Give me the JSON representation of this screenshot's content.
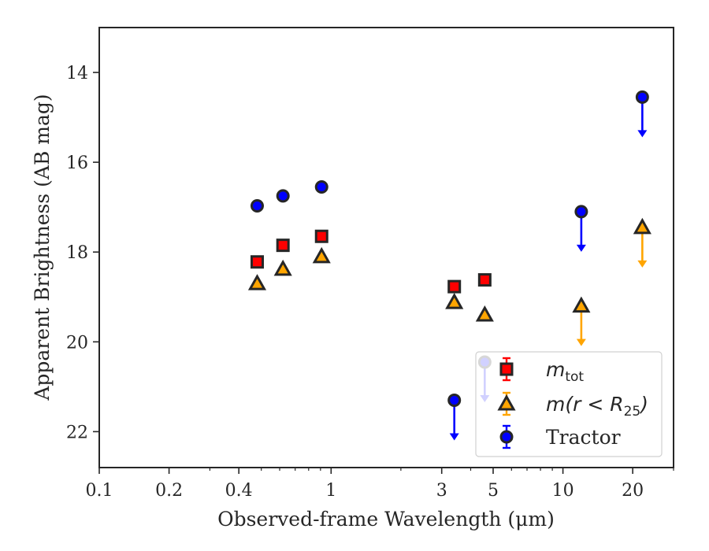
{
  "chart_data": {
    "type": "scatter",
    "title": "",
    "xlabel": "Observed-frame Wavelength (μm)",
    "ylabel": "Apparent Brightness (AB mag)",
    "xscale": "log",
    "yaxis_inverted": true,
    "xlim": [
      0.1,
      30
    ],
    "ylim": [
      22.8,
      13.0
    ],
    "x_ticks": [
      {
        "value": 0.1,
        "label": "0.1"
      },
      {
        "value": 0.2,
        "label": "0.2"
      },
      {
        "value": 0.4,
        "label": "0.4"
      },
      {
        "value": 1,
        "label": "1"
      },
      {
        "value": 3,
        "label": "3"
      },
      {
        "value": 5,
        "label": "5"
      },
      {
        "value": 10,
        "label": "10"
      },
      {
        "value": 20,
        "label": "20"
      }
    ],
    "y_ticks": [
      {
        "value": 14,
        "label": "14"
      },
      {
        "value": 16,
        "label": "16"
      },
      {
        "value": 18,
        "label": "18"
      },
      {
        "value": 20,
        "label": "20"
      },
      {
        "value": 22,
        "label": "22"
      }
    ],
    "grid": false,
    "legend_position": "lower-right",
    "series": [
      {
        "name": "m_tot",
        "legend_label": {
          "main": "m",
          "sub": "tot",
          "rest": ""
        },
        "marker": "square",
        "color": "#ff0000",
        "edge_color": "#262626",
        "points": [
          {
            "x": 0.48,
            "y": 18.22,
            "upper_limit": false
          },
          {
            "x": 0.62,
            "y": 17.85,
            "upper_limit": false
          },
          {
            "x": 0.91,
            "y": 17.65,
            "upper_limit": false
          },
          {
            "x": 3.4,
            "y": 18.77,
            "upper_limit": false
          },
          {
            "x": 4.6,
            "y": 18.62,
            "upper_limit": false
          }
        ]
      },
      {
        "name": "m(r < R_25)",
        "legend_label": {
          "main": "m(r < R",
          "sub": "25",
          "rest": ")"
        },
        "marker": "triangle",
        "color": "#ffa500",
        "edge_color": "#262626",
        "points": [
          {
            "x": 0.48,
            "y": 18.7,
            "upper_limit": false
          },
          {
            "x": 0.62,
            "y": 18.38,
            "upper_limit": false
          },
          {
            "x": 0.91,
            "y": 18.1,
            "upper_limit": false
          },
          {
            "x": 3.4,
            "y": 19.12,
            "upper_limit": false
          },
          {
            "x": 4.6,
            "y": 19.4,
            "upper_limit": false
          },
          {
            "x": 12.0,
            "y": 19.2,
            "upper_limit": true
          },
          {
            "x": 22.0,
            "y": 17.45,
            "upper_limit": true
          }
        ]
      },
      {
        "name": "Tractor",
        "legend_label": {
          "main": "Tractor",
          "sub": "",
          "rest": ""
        },
        "marker": "circle",
        "color": "#0000ff",
        "edge_color": "#262626",
        "points": [
          {
            "x": 0.48,
            "y": 16.97,
            "upper_limit": false
          },
          {
            "x": 0.62,
            "y": 16.75,
            "upper_limit": false
          },
          {
            "x": 0.91,
            "y": 16.55,
            "upper_limit": false
          },
          {
            "x": 3.4,
            "y": 21.3,
            "upper_limit": true
          },
          {
            "x": 4.6,
            "y": 20.45,
            "upper_limit": true
          },
          {
            "x": 12.0,
            "y": 17.1,
            "upper_limit": true
          },
          {
            "x": 22.0,
            "y": 14.55,
            "upper_limit": true
          }
        ]
      }
    ]
  }
}
